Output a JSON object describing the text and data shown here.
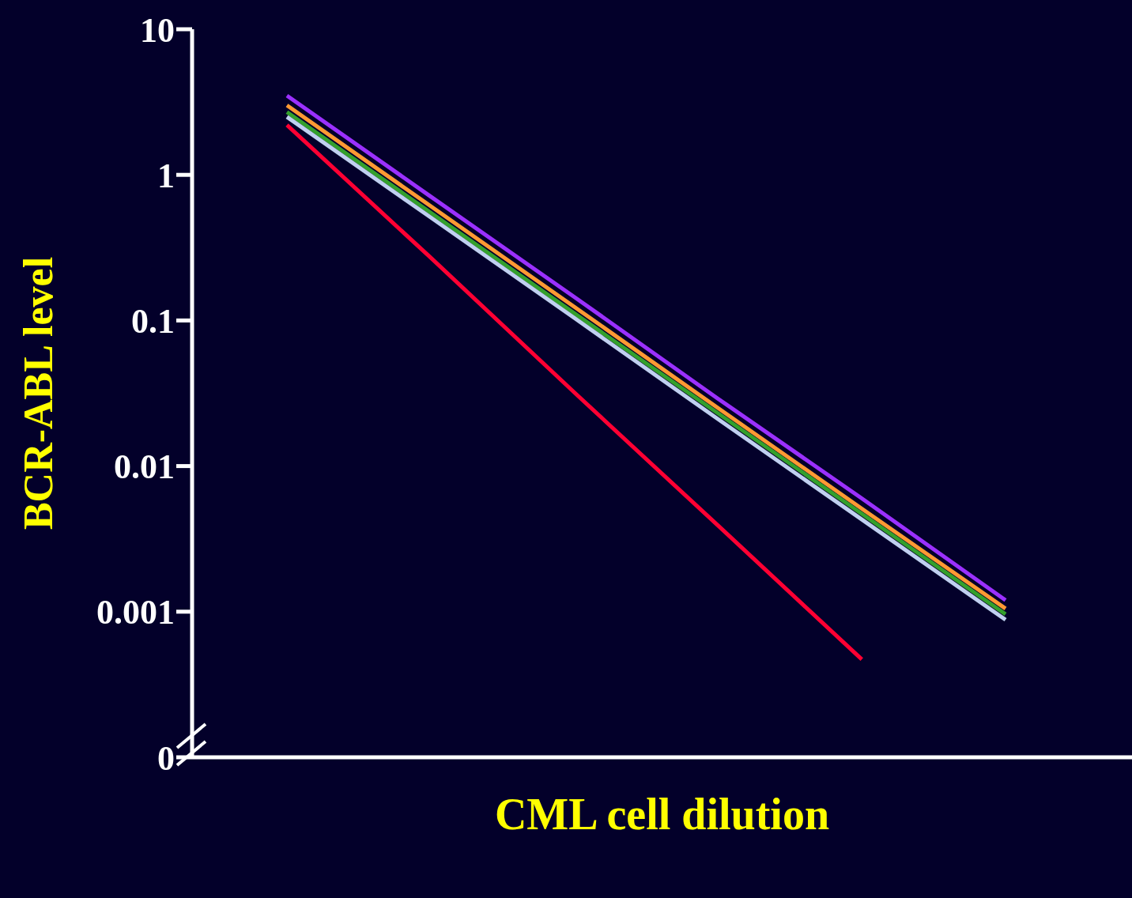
{
  "chart_data": {
    "type": "line",
    "xlabel": "CML cell dilution",
    "ylabel": "BCR-ABL level",
    "categories": [
      null,
      null,
      null,
      null,
      null,
      null
    ],
    "log": "y",
    "ylim": [
      0.0001,
      10
    ],
    "yticks": [
      {
        "value": 0.0001,
        "label": "0"
      },
      0.001,
      0.01,
      0.1,
      1,
      10
    ],
    "tick_labels": "y",
    "grid": false,
    "legend": false,
    "marker": "none",
    "line_style": "solid",
    "series": [
      {
        "color": "#9b30ff",
        "values": [
          3.5,
          0.71,
          0.145,
          0.029,
          0.006,
          0.0012
        ]
      },
      {
        "color": "#ff9933",
        "values": [
          3.0,
          0.61,
          0.124,
          0.025,
          0.0051,
          0.00105
        ]
      },
      {
        "color": "#33a02c",
        "values": [
          2.7,
          0.55,
          0.112,
          0.023,
          0.0047,
          0.00096
        ]
      },
      {
        "color": "#c0d0f0",
        "values": [
          2.5,
          0.51,
          0.104,
          0.021,
          0.0043,
          0.00088
        ]
      },
      {
        "color": "#ff0033",
        "values": [
          2.2,
          0.27,
          0.032,
          0.0039,
          0.00047,
          null
        ]
      }
    ]
  }
}
